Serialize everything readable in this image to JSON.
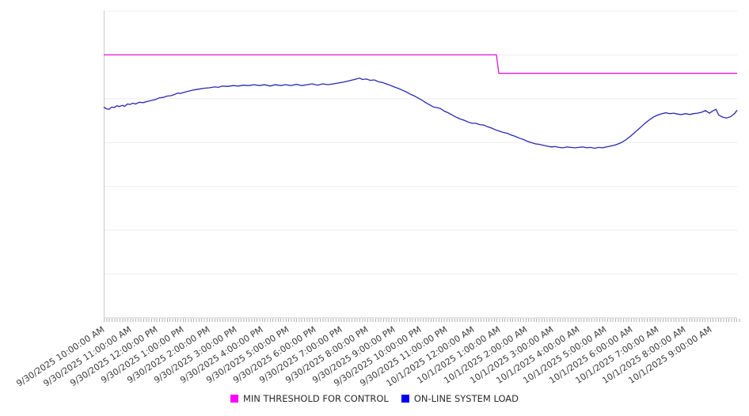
{
  "chart_data": {
    "type": "line",
    "title": "",
    "x_axis": {
      "labels": [
        "9/30/2025 10:00:00 AM",
        "9/30/2025 11:00:00 AM",
        "9/30/2025 12:00:00 PM",
        "9/30/2025 1:00:00 PM",
        "9/30/2025 2:00:00 PM",
        "9/30/2025 3:00:00 PM",
        "9/30/2025 4:00:00 PM",
        "9/30/2025 5:00:00 PM",
        "9/30/2025 6:00:00 PM",
        "9/30/2025 7:00:00 PM",
        "9/30/2025 8:00:00 PM",
        "9/30/2025 9:00:00 PM",
        "9/30/2025 10:00:00 PM",
        "9/30/2025 11:00:00 PM",
        "10/1/2025 12:00:00 AM",
        "10/1/2025 1:00:00 AM",
        "10/1/2025 2:00:00 AM",
        "10/1/2025 3:00:00 AM",
        "10/1/2025 4:00:00 AM",
        "10/1/2025 5:00:00 AM",
        "10/1/2025 6:00:00 AM",
        "10/1/2025 7:00:00 AM",
        "10/1/2025 8:00:00 AM",
        "10/1/2025 9:00:00 AM"
      ],
      "hours_span": 24,
      "minor_tick_minutes": 6,
      "label_rotation_deg": -33
    },
    "y_axis": {
      "tick_labels": [],
      "note": "no y-axis value labels are shown; series values are expressed in gridline units (0 = bottom axis, 7 = top border)",
      "gridline_rows": 7,
      "range": [
        0,
        7
      ],
      "grid_color": "#ececec",
      "axis_color": "#c9c9c9"
    },
    "legend_position": "bottom-center",
    "series": [
      {
        "name": "MIN THRESHOLD FOR CONTROL",
        "swatch_color": "#ff00ff",
        "line_color": "#e714d6",
        "shape": "step: constant 6.0 from start, drops to 5.58 just before 10/1/2025 1:00 AM",
        "points": [
          [
            0,
            6.0
          ],
          [
            14.88,
            6.0
          ],
          [
            14.97,
            5.58
          ],
          [
            24,
            5.58
          ]
        ]
      },
      {
        "name": "ON-LINE SYSTEM LOAD",
        "swatch_color": "#0000ee",
        "line_color": "#2828b4",
        "shape": "rises from 4.8 to plateau ~5.3, peaks 5.47 ~7:40 PM, falls to trough ~3.88 overnight (2-5 AM), recovers to ~4.7 by 9 AM",
        "points": [
          [
            0,
            4.81
          ],
          [
            0.1,
            4.77
          ],
          [
            0.2,
            4.76
          ],
          [
            0.3,
            4.81
          ],
          [
            0.4,
            4.8
          ],
          [
            0.5,
            4.84
          ],
          [
            0.6,
            4.82
          ],
          [
            0.7,
            4.85
          ],
          [
            0.8,
            4.83
          ],
          [
            0.9,
            4.88
          ],
          [
            1.0,
            4.87
          ],
          [
            1.1,
            4.9
          ],
          [
            1.2,
            4.88
          ],
          [
            1.35,
            4.92
          ],
          [
            1.5,
            4.91
          ],
          [
            1.65,
            4.94
          ],
          [
            1.8,
            4.96
          ],
          [
            2.0,
            4.99
          ],
          [
            2.1,
            5.02
          ],
          [
            2.25,
            5.03
          ],
          [
            2.4,
            5.06
          ],
          [
            2.55,
            5.07
          ],
          [
            2.7,
            5.1
          ],
          [
            2.8,
            5.13
          ],
          [
            2.9,
            5.12
          ],
          [
            3.0,
            5.14
          ],
          [
            3.2,
            5.17
          ],
          [
            3.4,
            5.2
          ],
          [
            3.6,
            5.22
          ],
          [
            3.8,
            5.24
          ],
          [
            4.0,
            5.25
          ],
          [
            4.2,
            5.27
          ],
          [
            4.35,
            5.26
          ],
          [
            4.5,
            5.29
          ],
          [
            4.7,
            5.28
          ],
          [
            4.9,
            5.3
          ],
          [
            5.1,
            5.29
          ],
          [
            5.3,
            5.31
          ],
          [
            5.5,
            5.3
          ],
          [
            5.7,
            5.32
          ],
          [
            5.9,
            5.3
          ],
          [
            6.1,
            5.32
          ],
          [
            6.3,
            5.29
          ],
          [
            6.5,
            5.32
          ],
          [
            6.7,
            5.3
          ],
          [
            6.9,
            5.32
          ],
          [
            7.1,
            5.3
          ],
          [
            7.3,
            5.33
          ],
          [
            7.5,
            5.3
          ],
          [
            7.7,
            5.32
          ],
          [
            7.9,
            5.34
          ],
          [
            8.1,
            5.31
          ],
          [
            8.3,
            5.34
          ],
          [
            8.5,
            5.32
          ],
          [
            8.7,
            5.34
          ],
          [
            8.9,
            5.36
          ],
          [
            9.1,
            5.38
          ],
          [
            9.3,
            5.41
          ],
          [
            9.5,
            5.44
          ],
          [
            9.7,
            5.47
          ],
          [
            9.8,
            5.44
          ],
          [
            9.95,
            5.45
          ],
          [
            10.1,
            5.42
          ],
          [
            10.25,
            5.43
          ],
          [
            10.4,
            5.39
          ],
          [
            10.55,
            5.37
          ],
          [
            10.7,
            5.34
          ],
          [
            10.85,
            5.31
          ],
          [
            11.0,
            5.27
          ],
          [
            11.15,
            5.24
          ],
          [
            11.3,
            5.2
          ],
          [
            11.45,
            5.16
          ],
          [
            11.6,
            5.11
          ],
          [
            11.75,
            5.07
          ],
          [
            11.9,
            5.02
          ],
          [
            12.05,
            4.97
          ],
          [
            12.2,
            4.91
          ],
          [
            12.35,
            4.86
          ],
          [
            12.5,
            4.81
          ],
          [
            12.6,
            4.8
          ],
          [
            12.75,
            4.78
          ],
          [
            12.9,
            4.72
          ],
          [
            13.05,
            4.68
          ],
          [
            13.2,
            4.63
          ],
          [
            13.35,
            4.58
          ],
          [
            13.5,
            4.54
          ],
          [
            13.65,
            4.51
          ],
          [
            13.8,
            4.47
          ],
          [
            13.95,
            4.44
          ],
          [
            14.1,
            4.44
          ],
          [
            14.25,
            4.41
          ],
          [
            14.4,
            4.4
          ],
          [
            14.55,
            4.36
          ],
          [
            14.7,
            4.33
          ],
          [
            14.85,
            4.29
          ],
          [
            15.0,
            4.26
          ],
          [
            15.15,
            4.23
          ],
          [
            15.3,
            4.21
          ],
          [
            15.45,
            4.17
          ],
          [
            15.6,
            4.14
          ],
          [
            15.75,
            4.1
          ],
          [
            15.9,
            4.07
          ],
          [
            16.05,
            4.03
          ],
          [
            16.2,
            4.0
          ],
          [
            16.35,
            3.97
          ],
          [
            16.5,
            3.96
          ],
          [
            16.65,
            3.94
          ],
          [
            16.8,
            3.92
          ],
          [
            16.95,
            3.9
          ],
          [
            17.1,
            3.91
          ],
          [
            17.25,
            3.89
          ],
          [
            17.4,
            3.88
          ],
          [
            17.55,
            3.9
          ],
          [
            17.7,
            3.89
          ],
          [
            17.85,
            3.88
          ],
          [
            18.0,
            3.89
          ],
          [
            18.15,
            3.9
          ],
          [
            18.3,
            3.88
          ],
          [
            18.45,
            3.89
          ],
          [
            18.6,
            3.87
          ],
          [
            18.75,
            3.89
          ],
          [
            18.9,
            3.88
          ],
          [
            19.05,
            3.9
          ],
          [
            19.2,
            3.92
          ],
          [
            19.35,
            3.94
          ],
          [
            19.5,
            3.97
          ],
          [
            19.65,
            4.01
          ],
          [
            19.8,
            4.07
          ],
          [
            19.95,
            4.14
          ],
          [
            20.1,
            4.22
          ],
          [
            20.25,
            4.3
          ],
          [
            20.4,
            4.38
          ],
          [
            20.55,
            4.46
          ],
          [
            20.7,
            4.53
          ],
          [
            20.85,
            4.59
          ],
          [
            21.0,
            4.63
          ],
          [
            21.15,
            4.66
          ],
          [
            21.3,
            4.68
          ],
          [
            21.45,
            4.66
          ],
          [
            21.6,
            4.67
          ],
          [
            21.75,
            4.65
          ],
          [
            21.9,
            4.64
          ],
          [
            22.05,
            4.66
          ],
          [
            22.2,
            4.64
          ],
          [
            22.35,
            4.66
          ],
          [
            22.5,
            4.67
          ],
          [
            22.65,
            4.69
          ],
          [
            22.8,
            4.73
          ],
          [
            22.95,
            4.67
          ],
          [
            23.1,
            4.73
          ],
          [
            23.2,
            4.76
          ],
          [
            23.3,
            4.63
          ],
          [
            23.45,
            4.58
          ],
          [
            23.6,
            4.56
          ],
          [
            23.75,
            4.59
          ],
          [
            23.9,
            4.66
          ],
          [
            24.0,
            4.74
          ]
        ]
      }
    ]
  }
}
